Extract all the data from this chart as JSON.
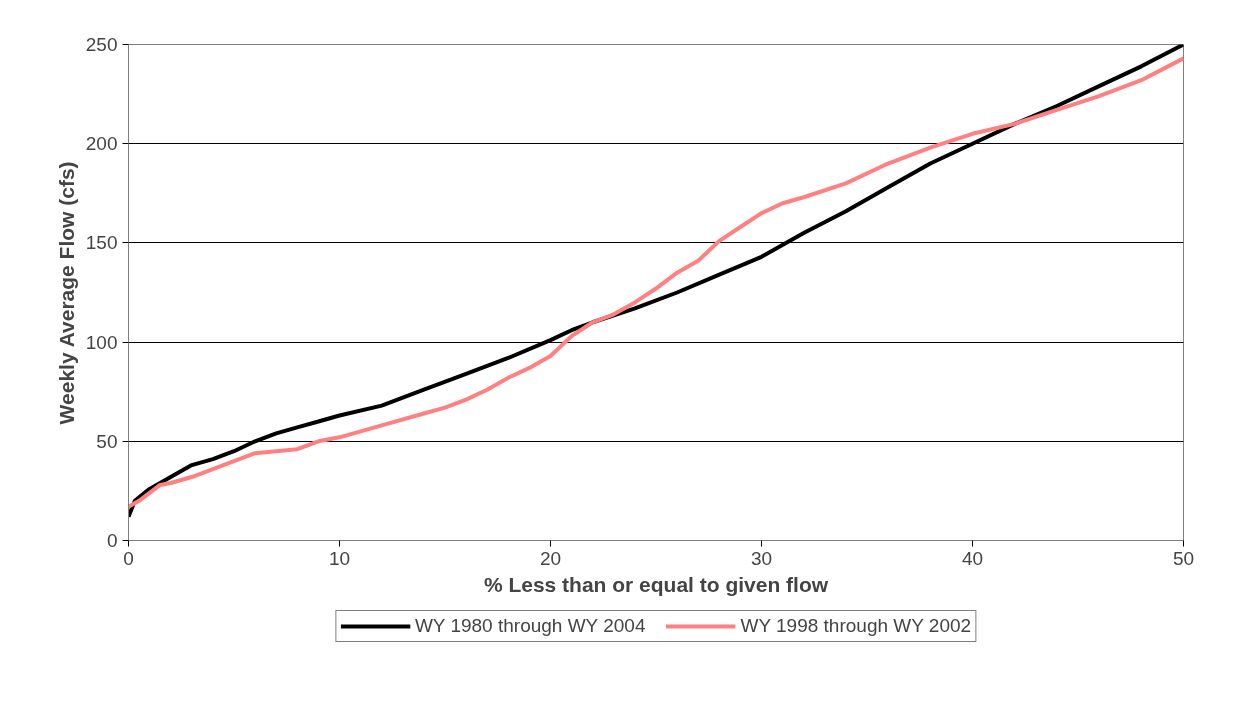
{
  "chart_data": {
    "type": "line",
    "xlabel": "% Less than or equal to given flow",
    "ylabel": "Weekly Average Flow (cfs)",
    "xlim": [
      0,
      50
    ],
    "xticks": [
      0,
      10,
      20,
      30,
      40,
      50
    ],
    "ylim": [
      0,
      250
    ],
    "yticks": [
      0,
      50,
      100,
      150,
      200,
      250
    ],
    "grid": "y",
    "legend": "bottom",
    "marker": "none",
    "line_style": "solid",
    "series": [
      {
        "name": "WY 1980 through WY 2004",
        "color": "#000000",
        "x": [
          0,
          0.3,
          1,
          2,
          3,
          4,
          5,
          6,
          7,
          8,
          9,
          10,
          12,
          14,
          16,
          18,
          20,
          21,
          22,
          24,
          26,
          28,
          30,
          32,
          34,
          36,
          38,
          40,
          42,
          44,
          46,
          48,
          50
        ],
        "values": [
          12,
          20,
          26,
          32,
          38,
          41,
          45,
          50,
          54,
          57,
          60,
          63,
          68,
          76,
          84,
          92,
          101,
          106,
          110,
          117,
          125,
          134,
          143,
          155,
          166,
          178,
          190,
          200,
          210,
          219,
          229,
          239,
          250
        ]
      },
      {
        "name": "WY 1998 through WY 2002",
        "color": "#ff8080",
        "x": [
          0,
          0.5,
          1,
          1.5,
          2,
          3,
          4,
          5,
          6,
          7,
          8,
          9,
          10,
          12,
          14,
          15,
          16,
          17,
          18,
          19,
          20,
          21,
          22,
          23,
          24,
          25,
          26,
          27,
          28,
          29,
          30,
          31,
          32,
          34,
          36,
          38,
          40,
          42,
          44,
          46,
          48,
          50
        ],
        "values": [
          17,
          20,
          24,
          28,
          29,
          32,
          36,
          40,
          44,
          45,
          46,
          50,
          52,
          58,
          64,
          67,
          71,
          76,
          82,
          87,
          93,
          103,
          110,
          114,
          120,
          127,
          135,
          141,
          151,
          158,
          165,
          170,
          173,
          180,
          190,
          198,
          205,
          210,
          217,
          224,
          232,
          243
        ]
      }
    ]
  }
}
